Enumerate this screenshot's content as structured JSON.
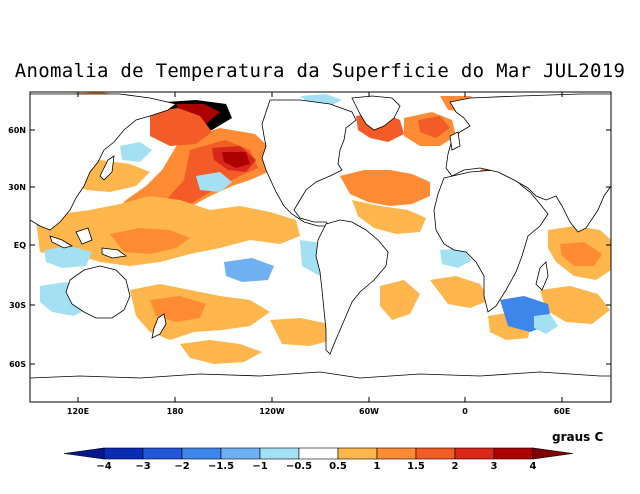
{
  "title": "Anomalia de Temperatura da Superficie do Mar JUL2019",
  "lat_labels": [
    "60N",
    "30N",
    "EQ",
    "30S",
    "60S"
  ],
  "lon_labels": [
    "120E",
    "180",
    "120W",
    "60W",
    "0",
    "60E"
  ],
  "colorbar": {
    "units": "graus C",
    "tick_labels": [
      "−4",
      "−3",
      "−2",
      "−1.5",
      "−1",
      "−0.5",
      "0.5",
      "1",
      "1.5",
      "2",
      "3",
      "4"
    ],
    "colors": [
      "#0a2bb5",
      "#2456d9",
      "#3f86ea",
      "#6fb0f2",
      "#a4e0f3",
      "#ffffff",
      "#ffb64d",
      "#ff8c35",
      "#f35b27",
      "#d9281b",
      "#ad0000"
    ],
    "left_arrow_color": "#06178e",
    "right_arrow_color": "#800000"
  }
}
